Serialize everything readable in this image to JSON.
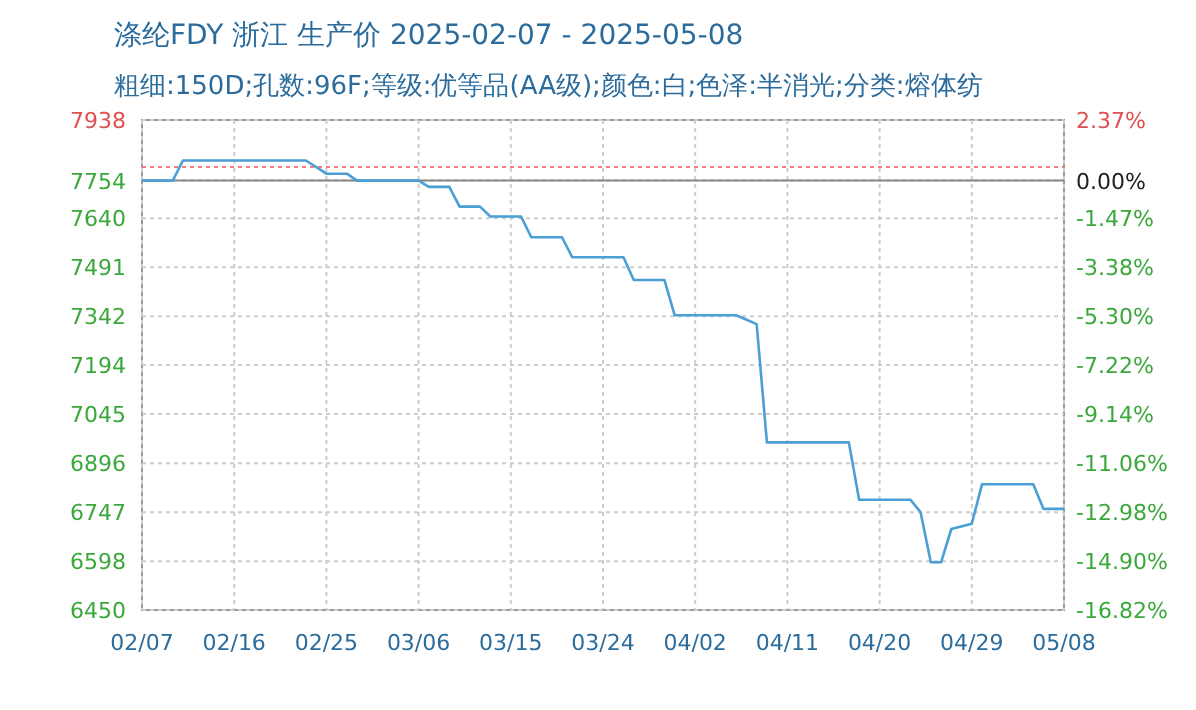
{
  "chart_data": {
    "type": "line",
    "title": "涤纶FDY 浙江 生产价 2025-02-07 - 2025-05-08",
    "subtitle": "粗细:150D;孔数:96F;等级:优等品(AA级);颜色:白;色泽:半消光;分类:熔体纺",
    "x": [
      "2025-02-07",
      "2025-02-10",
      "2025-02-11",
      "2025-02-23",
      "2025-02-25",
      "2025-02-27",
      "2025-02-28",
      "2025-03-06",
      "2025-03-07",
      "2025-03-09",
      "2025-03-10",
      "2025-03-12",
      "2025-03-13",
      "2025-03-16",
      "2025-03-17",
      "2025-03-20",
      "2025-03-21",
      "2025-03-26",
      "2025-03-27",
      "2025-03-30",
      "2025-03-31",
      "2025-04-06",
      "2025-04-08",
      "2025-04-09",
      "2025-04-17",
      "2025-04-18",
      "2025-04-23",
      "2025-04-24",
      "2025-04-25",
      "2025-04-26",
      "2025-04-27",
      "2025-04-29",
      "2025-04-30",
      "2025-05-05",
      "2025-05-06",
      "2025-05-08"
    ],
    "series": [
      {
        "color": "#4a9fd4",
        "values": [
          7754,
          7754,
          7815,
          7815,
          7775,
          7775,
          7754,
          7754,
          7735,
          7735,
          7675,
          7675,
          7645,
          7645,
          7582,
          7582,
          7521,
          7521,
          7452,
          7452,
          7345,
          7345,
          7318,
          6959,
          6959,
          6785,
          6785,
          6747,
          6595,
          6595,
          6696,
          6712,
          6832,
          6832,
          6757,
          6757
        ]
      }
    ],
    "xlim": [
      "2025-02-07",
      "2025-05-08"
    ],
    "xticks": [
      {
        "value": "2025-02-07",
        "label": "02/07"
      },
      {
        "value": "2025-02-16",
        "label": "02/16"
      },
      {
        "value": "2025-02-25",
        "label": "02/25"
      },
      {
        "value": "2025-03-06",
        "label": "03/06"
      },
      {
        "value": "2025-03-15",
        "label": "03/15"
      },
      {
        "value": "2025-03-24",
        "label": "03/24"
      },
      {
        "value": "2025-04-02",
        "label": "04/02"
      },
      {
        "value": "2025-04-11",
        "label": "04/11"
      },
      {
        "value": "2025-04-20",
        "label": "04/20"
      },
      {
        "value": "2025-04-29",
        "label": "04/29"
      },
      {
        "value": "2025-05-08",
        "label": "05/08"
      }
    ],
    "ylim": [
      6450,
      7938
    ],
    "yticks": [
      6450,
      6598,
      6747,
      6896,
      7045,
      7194,
      7342,
      7491,
      7640,
      7754,
      7938
    ],
    "y2lim": [
      -16.82,
      2.37
    ],
    "y2ticks": [
      {
        "value": -16.82,
        "label": "-16.82%"
      },
      {
        "value": -14.9,
        "label": "-14.90%"
      },
      {
        "value": -12.98,
        "label": "-12.98%"
      },
      {
        "value": -11.06,
        "label": "-11.06%"
      },
      {
        "value": -9.14,
        "label": "-9.14%"
      },
      {
        "value": -7.22,
        "label": "-7.22%"
      },
      {
        "value": -5.3,
        "label": "-5.30%"
      },
      {
        "value": -3.38,
        "label": "-3.38%"
      },
      {
        "value": -1.47,
        "label": "-1.47%"
      },
      {
        "value": 0,
        "label": "0.00%"
      },
      {
        "value": 2.37,
        "label": "2.37%"
      }
    ],
    "grid": true,
    "ref_lines": [
      {
        "axis": "y2",
        "value": 0,
        "color": "#888888",
        "line_style": "solid"
      },
      {
        "axis": "y",
        "value": 7795,
        "color": "#f08080",
        "line_style": "dotted"
      }
    ]
  }
}
